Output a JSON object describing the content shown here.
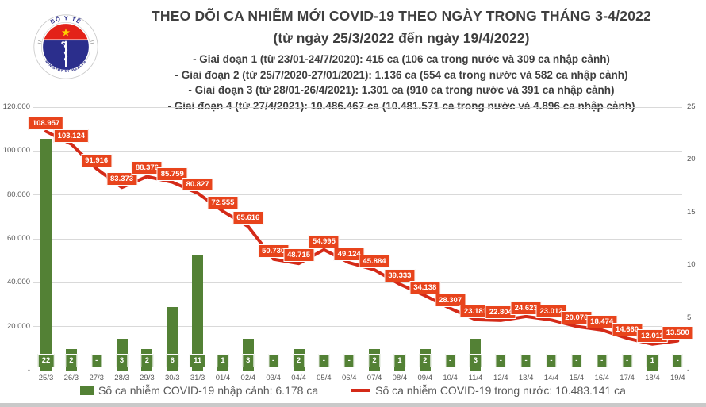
{
  "header": {
    "title": "THEO DÕI CA NHIỄM MỚI COVID-19 THEO NGÀY TRONG THÁNG 3-4/2022",
    "subtitle": "(từ ngày 25/3/2022 đến ngày 19/4/2022)",
    "phases": [
      "- Giai đoạn 1 (từ 23/01-24/7/2020): 415 ca (106 ca trong nước và 309 ca nhập cảnh)",
      "- Giai đoạn 2 (từ 25/7/2020-27/01/2021): 1.136 ca (554 ca trong nước và 582 ca nhập cảnh)",
      "- Giai đoạn 3 (từ 28/01-26/4/2021): 1.301 ca (910 ca trong nước và 391 ca nhập cảnh)",
      "- Giai đoạn 4 (từ 27/4/2021): 10.486.467 ca (10.481.571 ca trong nước và 4.896 ca nhập cảnh)"
    ],
    "logo": {
      "top_text": "BỘ Y TẾ",
      "bottom_text": "MINISTRY OF HEALTH"
    }
  },
  "chart_data": {
    "type": "bar+line",
    "title": "THEO DÕI CA NHIỄM MỚI COVID-19 THEO NGÀY TRONG THÁNG 3-4/2022",
    "categories": [
      "25/3",
      "26/3",
      "27/3",
      "28/3",
      "29/3",
      "30/3",
      "31/3",
      "01/4",
      "02/4",
      "03/4",
      "04/4",
      "05/4",
      "06/4",
      "07/4",
      "08/4",
      "09/4",
      "10/4",
      "11/4",
      "12/4",
      "13/4",
      "14/4",
      "15/4",
      "16/4",
      "17/4",
      "18/4",
      "19/4"
    ],
    "series": [
      {
        "name": "Số ca nhiễm COVID-19 nhập cảnh",
        "type": "bar",
        "axis": "right",
        "values": [
          22,
          2,
          0,
          3,
          2,
          6,
          11,
          1,
          3,
          0,
          2,
          0,
          0,
          2,
          1,
          2,
          0,
          3,
          0,
          0,
          0,
          0,
          0,
          0,
          1,
          0
        ],
        "labels": [
          "22",
          "2",
          "-",
          "3",
          "2",
          "6",
          "11",
          "1",
          "3",
          "-",
          "2",
          "-",
          "-",
          "2",
          "1",
          "2",
          "-",
          "3",
          "-",
          "-",
          "-",
          "-",
          "-",
          "-",
          "1",
          "-"
        ]
      },
      {
        "name": "Số ca nhiễm COVID-19 trong nước",
        "type": "line",
        "axis": "left",
        "values": [
          108957,
          103124,
          91916,
          83373,
          88376,
          85759,
          80827,
          72555,
          65616,
          50730,
          48715,
          54995,
          49124,
          45884,
          39333,
          34138,
          28307,
          23181,
          22804,
          24623,
          23012,
          20076,
          18474,
          14660,
          12011,
          13500
        ],
        "labels": [
          "108.957",
          "103.124",
          "91.916",
          "83.373",
          "88.376",
          "85.759",
          "80.827",
          "72.555",
          "65.616",
          "50.730",
          "48.715",
          "54.995",
          "49.124",
          "45.884",
          "39.333",
          "34.138",
          "28.307",
          "23.181",
          "22.804",
          "24.623",
          "23.012",
          "20.076",
          "18.474",
          "14.660",
          "12.011",
          "13.500"
        ]
      }
    ],
    "left_axis": {
      "max": 120000,
      "ticks": [
        "120.000",
        "100.000",
        "80.000",
        "60.000",
        "40.000",
        "20.000",
        "-"
      ]
    },
    "right_axis": {
      "max": 25,
      "ticks": [
        "25",
        "20",
        "15",
        "10",
        "5",
        "-"
      ]
    },
    "grid": "horizontal",
    "legend_position": "bottom"
  },
  "legend": {
    "bar_label": "Số ca nhiễm COVID-19 nhập cảnh: 6.178 ca",
    "line_label": "Số ca nhiễm COVID-19 trong nước: 10.483.141 ca"
  },
  "colors": {
    "bar": "#538135",
    "line": "#d42a18",
    "line_label_bg": "#e8441c",
    "axis_text": "#595959",
    "title_text": "#3f3f3f",
    "grid": "#d9d9d9",
    "logo_red": "#e32219",
    "logo_navy": "#2b2e8c",
    "logo_star": "#ffd200"
  }
}
